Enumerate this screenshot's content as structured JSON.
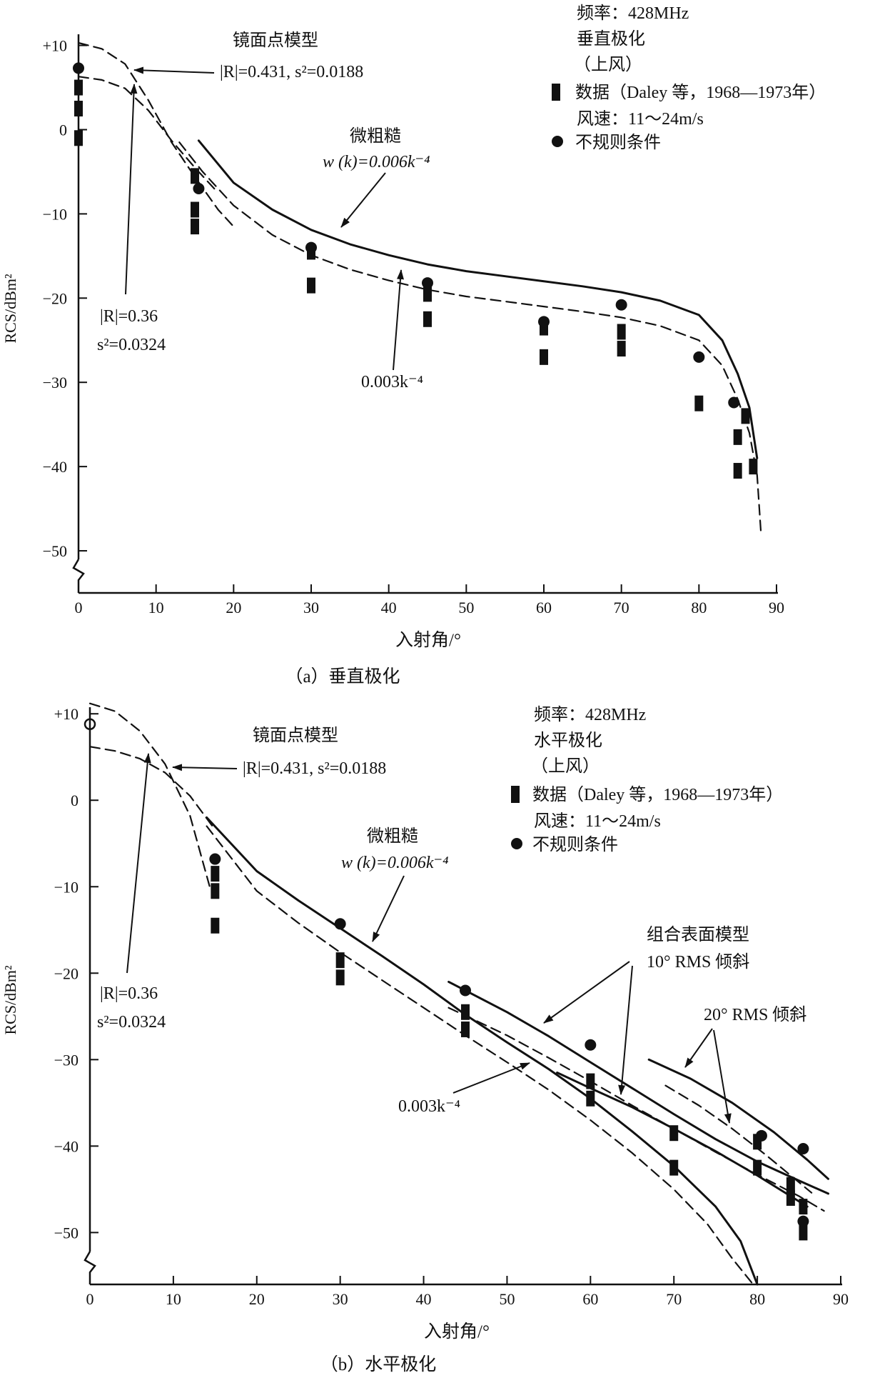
{
  "chart_data": [
    {
      "type": "line",
      "caption": "（a）垂直极化",
      "xlabel": "入射角/°",
      "ylabel": "RCS/dBm²",
      "xlim": [
        0,
        90
      ],
      "ylim": [
        -55,
        12
      ],
      "xticks": [
        0,
        10,
        20,
        30,
        40,
        50,
        60,
        70,
        80,
        90
      ],
      "yticks": [
        10,
        0,
        -10,
        -20,
        -30,
        -40,
        -50
      ],
      "ytick_labels": [
        "+10",
        "0",
        "−10",
        "−20",
        "−30",
        "−40",
        "−50"
      ],
      "series": [
        {
          "name": "镜面点模型 |R|=0.431, s²=0.0188",
          "style": "dashed",
          "x": [
            0,
            3,
            6,
            9,
            12,
            15,
            18,
            20
          ],
          "y": [
            10.3,
            9.6,
            7.8,
            3.5,
            -1.5,
            -5.6,
            -9.5,
            -11.5
          ]
        },
        {
          "name": "|R|=0.36 s²=0.0324",
          "style": "dashed",
          "x": [
            0,
            3,
            6,
            9,
            12,
            15,
            18
          ],
          "y": [
            6.3,
            5.9,
            4.9,
            2.3,
            -1.3,
            -4.5,
            -7.5
          ]
        },
        {
          "name": "微粗糙 w(k)=0.006k⁻⁴",
          "style": "solid",
          "x": [
            15.5,
            20,
            25,
            30,
            35,
            40,
            45,
            50,
            55,
            60,
            65,
            70,
            75,
            80,
            83,
            85,
            86.5,
            87.5
          ],
          "y": [
            -1.3,
            -6.3,
            -9.5,
            -11.9,
            -13.6,
            -14.9,
            -16.0,
            -16.8,
            -17.4,
            -18.0,
            -18.6,
            -19.3,
            -20.3,
            -22.0,
            -25.0,
            -29.0,
            -33.0,
            -39.0
          ]
        },
        {
          "name": "0.003k⁻⁴",
          "style": "dashed",
          "x": [
            13,
            16,
            20,
            25,
            30,
            35,
            40,
            45,
            50,
            55,
            60,
            65,
            70,
            75,
            80,
            83,
            85,
            86.5,
            87.5,
            88
          ],
          "y": [
            -1.5,
            -5.0,
            -9.0,
            -12.5,
            -14.9,
            -16.6,
            -17.9,
            -19.0,
            -19.8,
            -20.4,
            -21.0,
            -21.6,
            -22.3,
            -23.3,
            -25.0,
            -28.0,
            -32.0,
            -36.0,
            -41.0,
            -48.0
          ]
        }
      ],
      "data_points": {
        "name": "数据（Daley 等，1968—1973年）",
        "x": [
          0,
          0,
          0,
          15,
          15,
          15,
          30,
          30,
          45,
          45,
          60,
          60,
          70,
          70,
          80,
          85,
          85,
          86,
          87
        ],
        "y": [
          5.0,
          2.5,
          -1.0,
          -5.5,
          -9.5,
          -11.5,
          -14.5,
          -18.5,
          -19.5,
          -22.5,
          -23.5,
          -27.0,
          -24.0,
          -26.0,
          -32.5,
          -36.5,
          -40.5,
          -34.0,
          -40.0
        ]
      },
      "irregular_points": {
        "name": "不规则条件",
        "x": [
          0,
          15.5,
          30,
          45,
          60,
          70,
          80,
          84.5
        ],
        "y": [
          7.3,
          -7.0,
          -14.0,
          -18.2,
          -22.8,
          -20.8,
          -27.0,
          -32.4
        ]
      },
      "annotations": {
        "specular": "镜面点模型",
        "specular_params": "|R|=0.431, s²=0.0188",
        "small_rough": "微粗糙",
        "small_rough_w": "w (k)=0.006k⁻⁴",
        "r036": "|R|=0.36",
        "s0324": "s²=0.0324",
        "k0003": "0.003k⁻⁴"
      },
      "legend": {
        "freq": "频率：428MHz",
        "pol": "垂直极化",
        "wind": "（上风）",
        "data": "数据（Daley 等，1968—1973年）",
        "speed": "风速：11～24m/s",
        "irregular": "不规则条件",
        "placement": "top-right"
      }
    },
    {
      "type": "line",
      "caption": "（b）水平极化",
      "xlabel": "入射角/°",
      "ylabel": "RCS/dBm²",
      "xlim": [
        0,
        90
      ],
      "ylim": [
        -56,
        12
      ],
      "xticks": [
        0,
        10,
        20,
        30,
        40,
        50,
        60,
        70,
        80,
        90
      ],
      "yticks": [
        10,
        0,
        -10,
        -20,
        -30,
        -40,
        -50
      ],
      "ytick_labels": [
        "+10",
        "0",
        "−10",
        "−20",
        "−30",
        "−40",
        "−50"
      ],
      "series": [
        {
          "name": "镜面点模型 |R|=0.431, s²=0.0188",
          "style": "dashed",
          "x": [
            0,
            3,
            6,
            9,
            12,
            14.5
          ],
          "y": [
            11.2,
            10.3,
            8.0,
            4.2,
            -1.8,
            -10.5
          ]
        },
        {
          "name": "|R|=0.36 s²=0.0324",
          "style": "dashed",
          "x": [
            0,
            3,
            6,
            9,
            12,
            15
          ],
          "y": [
            6.2,
            5.7,
            4.8,
            3.2,
            0.5,
            -3.4
          ]
        },
        {
          "name": "微粗糙 w(k)=0.006k⁻⁴",
          "style": "solid",
          "x": [
            14,
            20,
            25,
            30,
            35,
            40,
            45,
            50,
            55,
            60,
            65,
            70,
            75,
            78,
            80
          ],
          "y": [
            -2.0,
            -8.2,
            -11.6,
            -14.8,
            -18.0,
            -21.3,
            -24.8,
            -28.0,
            -31.1,
            -34.5,
            -38.3,
            -42.3,
            -47.0,
            -51.0,
            -56.0
          ]
        },
        {
          "name": "0.003k⁻⁴",
          "style": "dashed",
          "x": [
            14,
            20,
            25,
            30,
            35,
            40,
            45,
            50,
            55,
            60,
            65,
            70,
            74,
            77,
            79.5
          ],
          "y": [
            -3.0,
            -10.5,
            -14.2,
            -17.6,
            -20.8,
            -24.0,
            -27.2,
            -30.3,
            -33.5,
            -37.0,
            -40.8,
            -45.0,
            -49.0,
            -53.0,
            -56.0
          ]
        },
        {
          "name": "组合表面模型 10° RMS 倾斜",
          "style": "solid",
          "x": [
            43,
            50,
            55,
            60,
            65,
            70,
            75,
            80,
            85,
            88.5
          ],
          "y": [
            -21.0,
            -24.5,
            -27.3,
            -30.3,
            -33.3,
            -36.3,
            -39.2,
            -41.8,
            -44.0,
            -45.5
          ]
        },
        {
          "name": "组合表面模型 10° RMS 倾斜",
          "style": "dashed",
          "x": [
            43,
            50,
            55,
            60,
            65,
            70,
            75,
            80,
            85,
            88
          ],
          "y": [
            -24.0,
            -27.2,
            -29.8,
            -32.5,
            -35.3,
            -38.0,
            -40.7,
            -43.3,
            -45.8,
            -47.5
          ]
        },
        {
          "name": "组合表面模型 10° RMS 倾斜",
          "style": "solid",
          "x": [
            56,
            60,
            65,
            70,
            75,
            80,
            84,
            86
          ],
          "y": [
            -31.5,
            -33.3,
            -35.5,
            -38.0,
            -40.6,
            -43.4,
            -45.8,
            -47.0
          ]
        },
        {
          "name": "20° RMS 倾斜",
          "style": "solid",
          "x": [
            67,
            72,
            77,
            82,
            86,
            88.5
          ],
          "y": [
            -30.0,
            -32.2,
            -35.0,
            -38.4,
            -41.6,
            -43.8
          ]
        },
        {
          "name": "20° RMS 倾斜",
          "style": "dashed",
          "x": [
            69,
            73,
            77,
            81,
            84,
            86.5
          ],
          "y": [
            -33.0,
            -35.3,
            -38.0,
            -41.0,
            -43.4,
            -45.4
          ]
        }
      ],
      "data_points": {
        "name": "数据（Daley 等，1968—1973年）",
        "x": [
          15,
          15,
          15,
          30,
          30,
          45,
          45,
          60,
          60,
          70,
          70,
          80,
          80,
          84,
          84,
          85.5,
          85.5
        ],
        "y": [
          -8.5,
          -10.5,
          -14.5,
          -18.5,
          -20.5,
          -24.5,
          -26.5,
          -32.5,
          -34.5,
          -38.5,
          -42.5,
          -39.5,
          -42.5,
          -44.5,
          -46.0,
          -47.0,
          -50.0
        ]
      },
      "irregular_points": {
        "name": "不规则条件",
        "x": [
          15,
          30,
          45,
          60,
          80.5,
          85.5,
          85.5
        ],
        "y": [
          -6.8,
          -14.3,
          -22.0,
          -28.3,
          -38.8,
          -40.3,
          -48.7
        ]
      },
      "open_points": {
        "x": [
          0
        ],
        "y": [
          8.8
        ]
      },
      "annotations": {
        "specular": "镜面点模型",
        "specular_params": "|R|=0.431, s²=0.0188",
        "small_rough": "微粗糙",
        "small_rough_w": "w (k)=0.006k⁻⁴",
        "r036": "|R|=0.36",
        "s0324": "s²=0.0324",
        "k0003": "0.003k⁻⁴",
        "composite": "组合表面模型",
        "tilt10": "10°  RMS 倾斜",
        "tilt20": "20°  RMS 倾斜"
      },
      "legend": {
        "freq": "频率：428MHz",
        "pol": "水平极化",
        "wind": "（上风）",
        "data": "数据（Daley 等，1968—1973年）",
        "speed": "风速：11～24m/s",
        "irregular": "不规则条件",
        "placement": "top-right"
      }
    }
  ]
}
